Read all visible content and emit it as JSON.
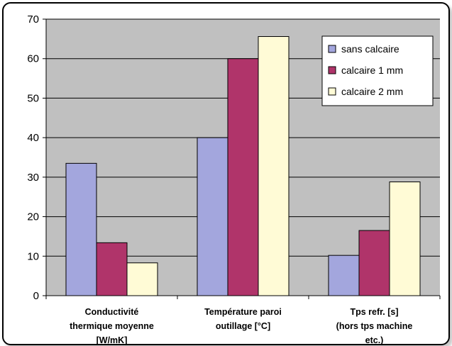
{
  "chart_data": {
    "type": "bar",
    "categories": [
      [
        "Conductivité",
        "thermique moyenne",
        "[W/mK]"
      ],
      [
        "Température paroi",
        "outillage [°C]"
      ],
      [
        "Tps refr. [s]",
        "(hors tps machine",
        "etc.)"
      ]
    ],
    "series": [
      {
        "name": "sans calcaire",
        "color": "#a3a6dd",
        "values": [
          33.5,
          40,
          10.2
        ]
      },
      {
        "name": "calcaire 1 mm",
        "color": "#b0346a",
        "values": [
          13.4,
          60,
          16.5
        ]
      },
      {
        "name": "calcaire 2 mm",
        "color": "#fffbd6",
        "values": [
          8.3,
          65.6,
          28.8
        ]
      }
    ],
    "ylim": [
      0,
      70
    ],
    "yticks": [
      0,
      10,
      20,
      30,
      40,
      50,
      60,
      70
    ],
    "grid": true,
    "legend": "top-right",
    "plot_background": "#c0c0c0"
  }
}
